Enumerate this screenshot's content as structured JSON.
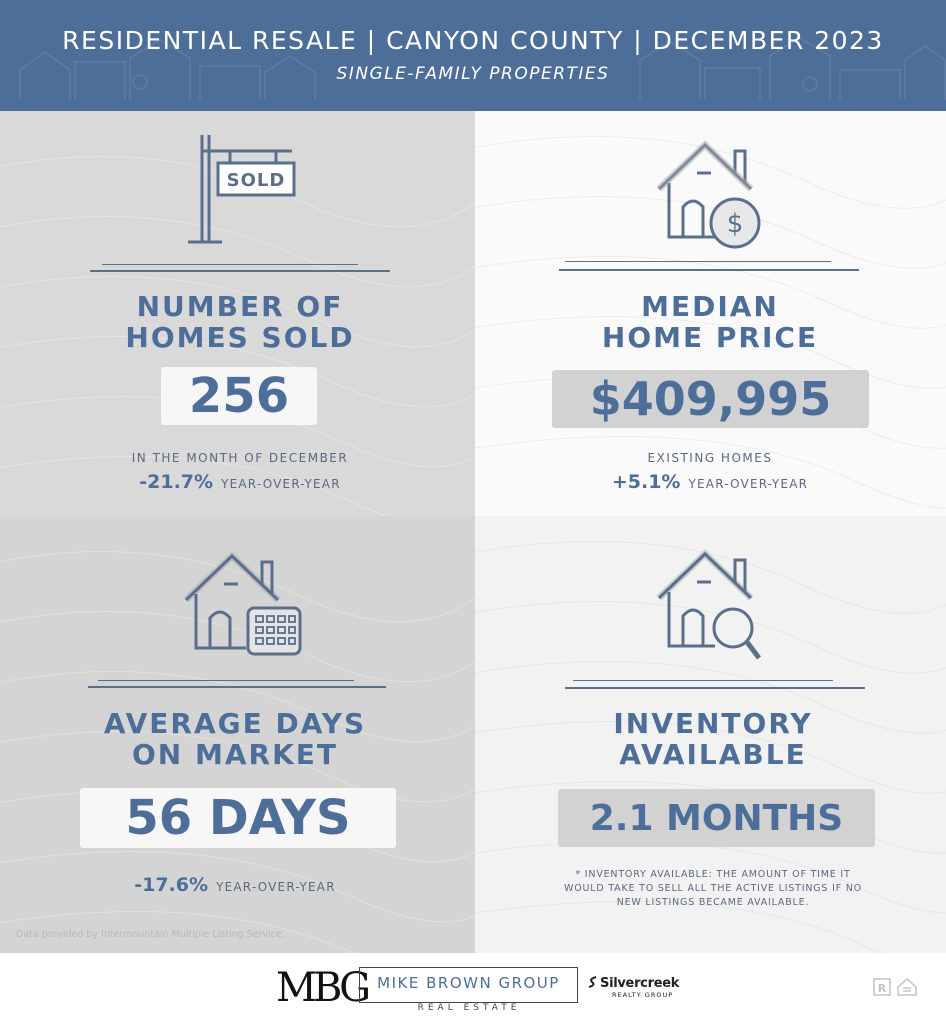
{
  "header": {
    "title": "RESIDENTIAL RESALE | CANYON COUNTY | DECEMBER 2023",
    "subtitle": "SINGLE-FAMILY PROPERTIES"
  },
  "metrics": [
    {
      "icon": "sold-sign-icon",
      "sign_text": "SOLD",
      "title_line1": "NUMBER OF",
      "title_line2": "HOMES SOLD",
      "value": "256",
      "caption": "IN THE MONTH OF DECEMBER",
      "change": "-21.7%",
      "change_label": "YEAR-OVER-YEAR"
    },
    {
      "icon": "house-dollar-icon",
      "title_line1": "MEDIAN",
      "title_line2": "HOME PRICE",
      "value": "$409,995",
      "caption": "EXISTING HOMES",
      "change": "+5.1%",
      "change_label": "YEAR-OVER-YEAR"
    },
    {
      "icon": "house-calendar-icon",
      "title_line1": "AVERAGE DAYS",
      "title_line2": "ON MARKET",
      "value": "56 DAYS",
      "change": "-17.6%",
      "change_label": "YEAR-OVER-YEAR"
    },
    {
      "icon": "house-magnifier-icon",
      "title_line1": "INVENTORY",
      "title_line2": "AVAILABLE",
      "value": "2.1 MONTHS",
      "footnote_line1": "* INVENTORY AVAILABLE: THE AMOUNT OF TIME IT",
      "footnote_line2": "WOULD TAKE TO SELL ALL THE ACTIVE LISTINGS IF NO",
      "footnote_line3": "NEW LISTINGS BECAME AVAILABLE."
    }
  ],
  "source": "Data provided by Intermountain Multiple Listing Service.",
  "footer": {
    "mbg_monogram": "MBG",
    "brand_name": "MIKE BROWN GROUP",
    "brand_sub": "REAL ESTATE",
    "partner": "Silvercreek",
    "partner_sub": "REALTY GROUP"
  },
  "colors": {
    "header_bg": "#4e6e9a",
    "accent": "#4e6e9a",
    "icon_stroke": "#5a6f8c"
  }
}
